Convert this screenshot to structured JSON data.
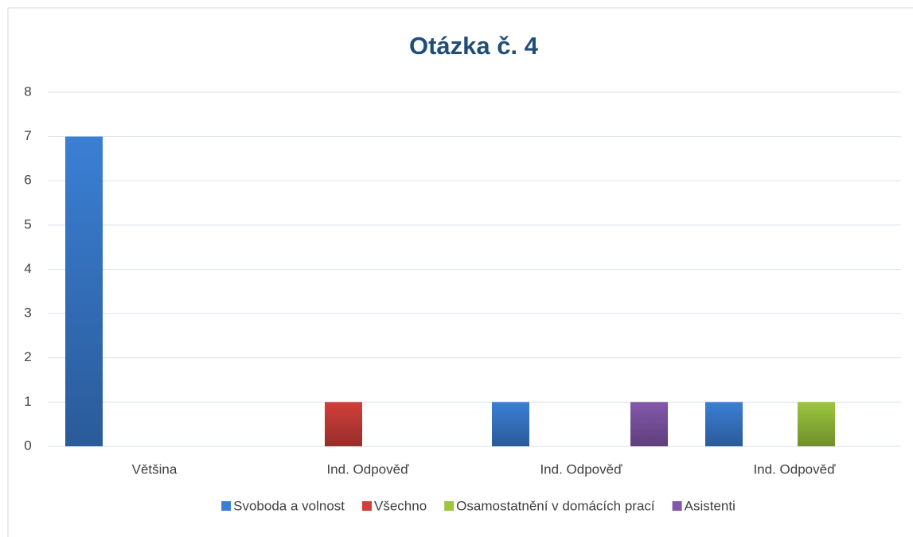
{
  "chart_data": {
    "type": "bar",
    "title": "Otázka č. 4",
    "categories": [
      "Většina",
      "Ind. Odpověď",
      "Ind. Odpověď",
      "Ind. Odpověď"
    ],
    "series": [
      {
        "name": "Svoboda a volnost",
        "color": "#3b7fd4",
        "values": [
          7,
          null,
          1,
          1
        ]
      },
      {
        "name": "Všechno",
        "color": "#d23f3a",
        "values": [
          null,
          1,
          null,
          null
        ]
      },
      {
        "name": "Osamostatnění v domácích prací",
        "color": "#9cc63f",
        "values": [
          null,
          null,
          null,
          1
        ]
      },
      {
        "name": "Asistenti",
        "color": "#8358ab",
        "values": [
          null,
          null,
          1,
          null
        ]
      }
    ],
    "ylim": [
      0,
      8
    ],
    "yticks": [
      0,
      1,
      2,
      3,
      4,
      5,
      6,
      7,
      8
    ],
    "grid": true,
    "legend": "bottom"
  }
}
